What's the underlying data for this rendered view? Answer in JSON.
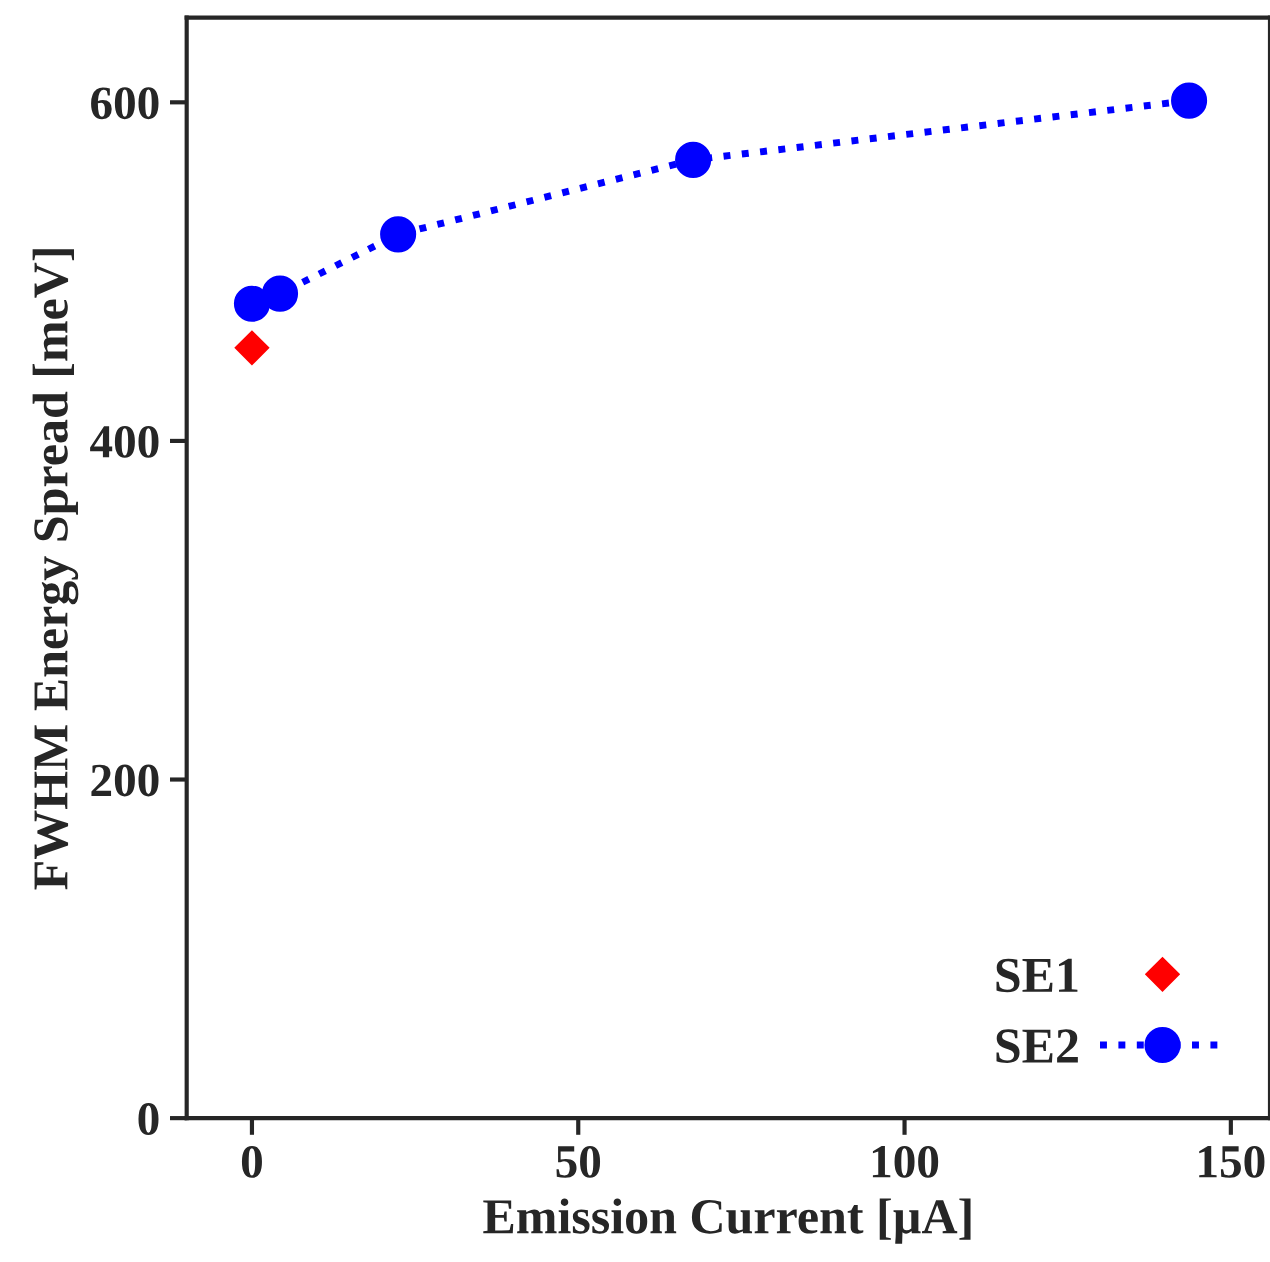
{
  "chart_data": {
    "type": "scatter",
    "xlabel": "Emission Current [µA]",
    "ylabel": "FWHM Energy Spread [meV]",
    "xlim": [
      -10,
      156
    ],
    "ylim": [
      0,
      650
    ],
    "xticks": [
      0,
      50,
      100,
      150
    ],
    "yticks": [
      0,
      200,
      400,
      600
    ],
    "grid": false,
    "legend": "bottom right",
    "series": [
      {
        "name": "SE1",
        "color": "#ff0000",
        "marker": "diamond",
        "x": [
          0
        ],
        "values": [
          455
        ]
      },
      {
        "name": "SE2",
        "type": "line",
        "color": "#0000ff",
        "marker": "circle",
        "line_style": "dotted",
        "x": [
          0,
          4.3,
          22.4,
          67.6,
          143.6
        ],
        "values": [
          481,
          487,
          522,
          566,
          601
        ]
      }
    ]
  }
}
